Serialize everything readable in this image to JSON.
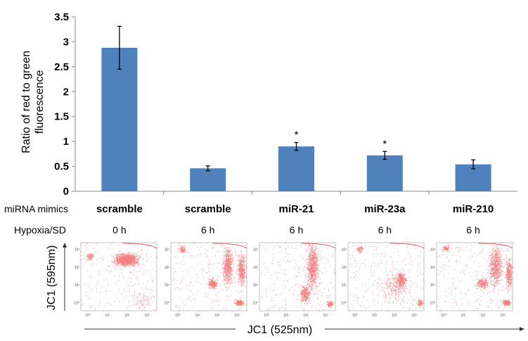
{
  "chart_data": {
    "type": "bar",
    "title": "",
    "ylabel": "Ratio of red to green fluorescence",
    "ylabel_lines": [
      "Ratio of red to green",
      "fluorescence"
    ],
    "ylim": [
      0,
      3.5
    ],
    "yticks": [
      "0",
      "0.5",
      "1",
      "1.5",
      "2",
      "2.5",
      "3",
      "3.5"
    ],
    "grid": false,
    "bar_color": "#4f81bd",
    "row_labels": {
      "mimics": "miRNA mimics",
      "hypoxia": "Hypoxia/SD"
    },
    "categories": [
      "scramble",
      "scramble",
      "miR-21",
      "miR-23a",
      "miR-210"
    ],
    "hypoxia": [
      "0 h",
      "6 h",
      "6 h",
      "6 h",
      "6 h"
    ],
    "values": [
      2.88,
      0.46,
      0.9,
      0.72,
      0.54
    ],
    "errors": [
      0.43,
      0.05,
      0.08,
      0.08,
      0.09
    ],
    "annotations": [
      "",
      "",
      "*",
      "*",
      ""
    ]
  },
  "flow_panels": {
    "type": "scatter",
    "xlabel": "JC1 (525nm)",
    "ylabel": "JC1 (595nm)",
    "tick_labels": [
      "10⁰",
      "10¹",
      "10²",
      "10³"
    ],
    "dot_color": "#e8141c",
    "count": 5
  }
}
